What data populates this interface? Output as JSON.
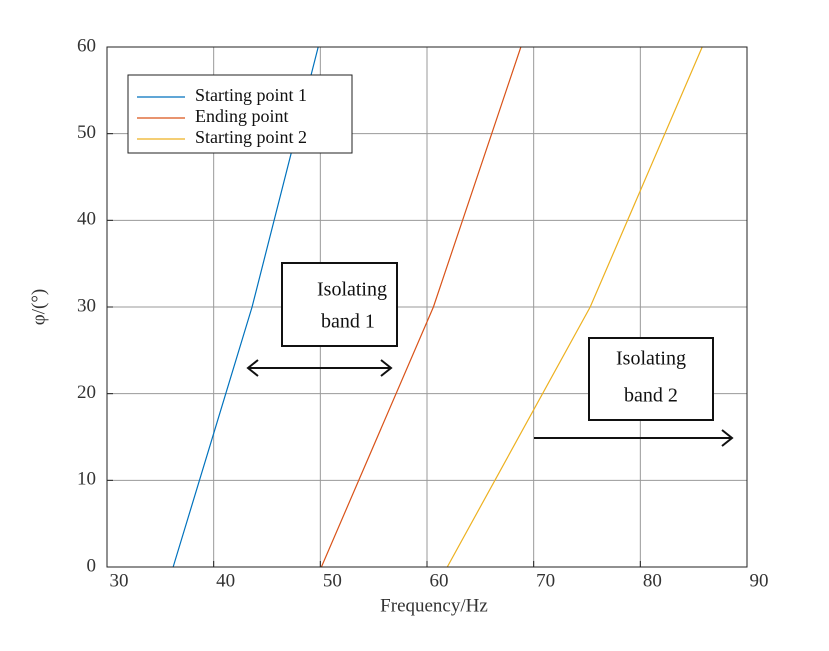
{
  "chart_data": {
    "type": "line",
    "xlabel": "Frequency/Hz",
    "ylabel": "φ/(°)",
    "xlim": [
      30,
      90
    ],
    "ylim": [
      0,
      60
    ],
    "xticks": [
      30,
      40,
      50,
      60,
      70,
      80,
      90
    ],
    "yticks": [
      0,
      10,
      20,
      30,
      40,
      50,
      60
    ],
    "grid": true,
    "legend": "upper-left",
    "series": [
      {
        "name": "Starting point 1",
        "color": "#0072bd",
        "x": [
          36.2,
          43.6,
          49.8
        ],
        "values": [
          0,
          30,
          60
        ]
      },
      {
        "name": "Ending point",
        "color": "#d95319",
        "x": [
          50.1,
          60.6,
          68.8
        ],
        "values": [
          0,
          30,
          60
        ]
      },
      {
        "name": "Starting point 2",
        "color": "#edb120",
        "x": [
          61.9,
          75.3,
          85.8
        ],
        "values": [
          0,
          30,
          60
        ]
      }
    ],
    "annotations": [
      {
        "lines": [
          "Isolating",
          "band 1"
        ]
      },
      {
        "lines": [
          "Isolating",
          "band 2"
        ]
      }
    ]
  }
}
